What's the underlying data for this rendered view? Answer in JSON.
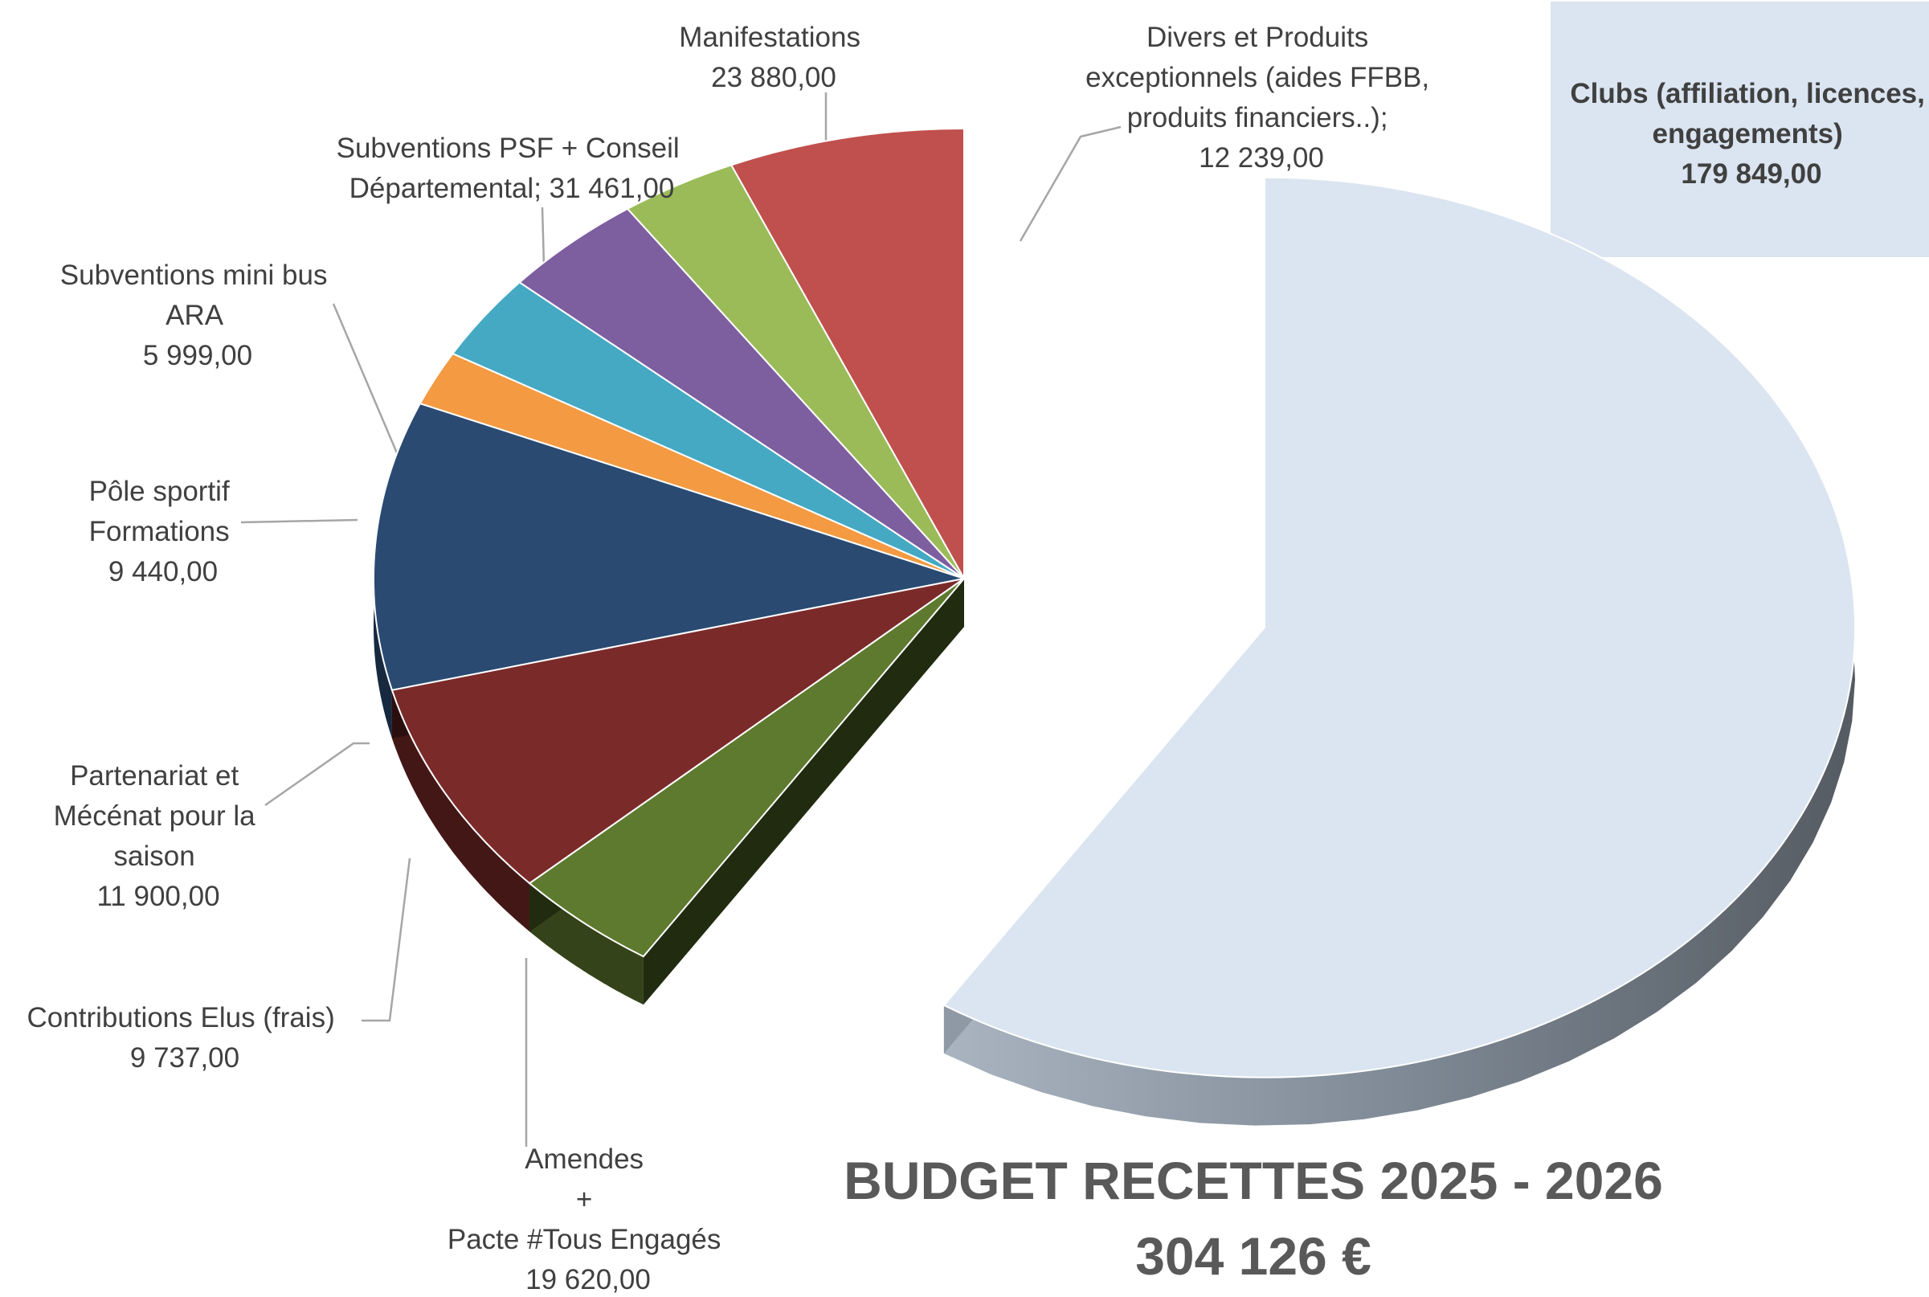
{
  "chart_data": {
    "type": "pie",
    "title": "BUDGET RECETTES 2025 - 2026",
    "subtitle": "304 126 €",
    "slices": [
      {
        "name": "Clubs (affiliation, licences, engagements)",
        "value": 179849,
        "display": "179 849,00",
        "color": "#dbe5f1"
      },
      {
        "name": "Divers et Produits exceptionnels (aides FFBB, produits financiers..);",
        "value": 12239,
        "display": "12 239,00",
        "color": "#5e7a2e"
      },
      {
        "name": "Manifestations",
        "value": 23880,
        "display": "23 880,00",
        "color": "#7b2a2a"
      },
      {
        "name": "Subventions PSF + Conseil Départemental;",
        "value": 31461,
        "display": "31 461,00",
        "color": "#2a4a72"
      },
      {
        "name": "Subventions mini bus ARA",
        "value": 5999,
        "display": "5 999,00",
        "color": "#f39a42"
      },
      {
        "name": "Pôle sportif Formations",
        "value": 9440,
        "display": "9 440,00",
        "color": "#45a9c4"
      },
      {
        "name": "Partenariat et Mécénat pour la saison",
        "value": 11900,
        "display": "11 900,00",
        "color": "#7d5fa0"
      },
      {
        "name": "Contributions Elus (frais)",
        "value": 9737,
        "display": "9 737,00",
        "color": "#9bbb59"
      },
      {
        "name": "Amendes + Pacte #Tous Engagés",
        "value": 19620,
        "display": "19 620,00",
        "color": "#c0504d"
      }
    ]
  },
  "labels": {
    "clubs": {
      "l1": "Clubs (affiliation, licences,",
      "l2": "engagements)",
      "l3": "179 849,00"
    },
    "divers": {
      "l1": "Divers et Produits",
      "l2": "exceptionnels (aides FFBB,",
      "l3": "produits financiers..);",
      "l4": "12 239,00"
    },
    "manif": {
      "l1": "Manifestations",
      "l2": "23 880,00"
    },
    "psf": {
      "l1": "Subventions PSF + Conseil",
      "l2": "Départemental; 31 461,00"
    },
    "minibus": {
      "l1": "Subventions mini bus",
      "l2": "ARA",
      "l3": "5 999,00"
    },
    "pole": {
      "l1": "Pôle sportif",
      "l2": "Formations",
      "l3": "9 440,00"
    },
    "partenariat": {
      "l1": "Partenariat et",
      "l2": "Mécénat pour la",
      "l3": "saison",
      "l4": "11 900,00"
    },
    "elus": {
      "l1": "Contributions Elus (frais)",
      "l2": "9 737,00"
    },
    "amendes": {
      "l1": "Amendes",
      "l2": "+",
      "l3": "Pacte #Tous Engagés",
      "l4": "19 620,00"
    }
  }
}
